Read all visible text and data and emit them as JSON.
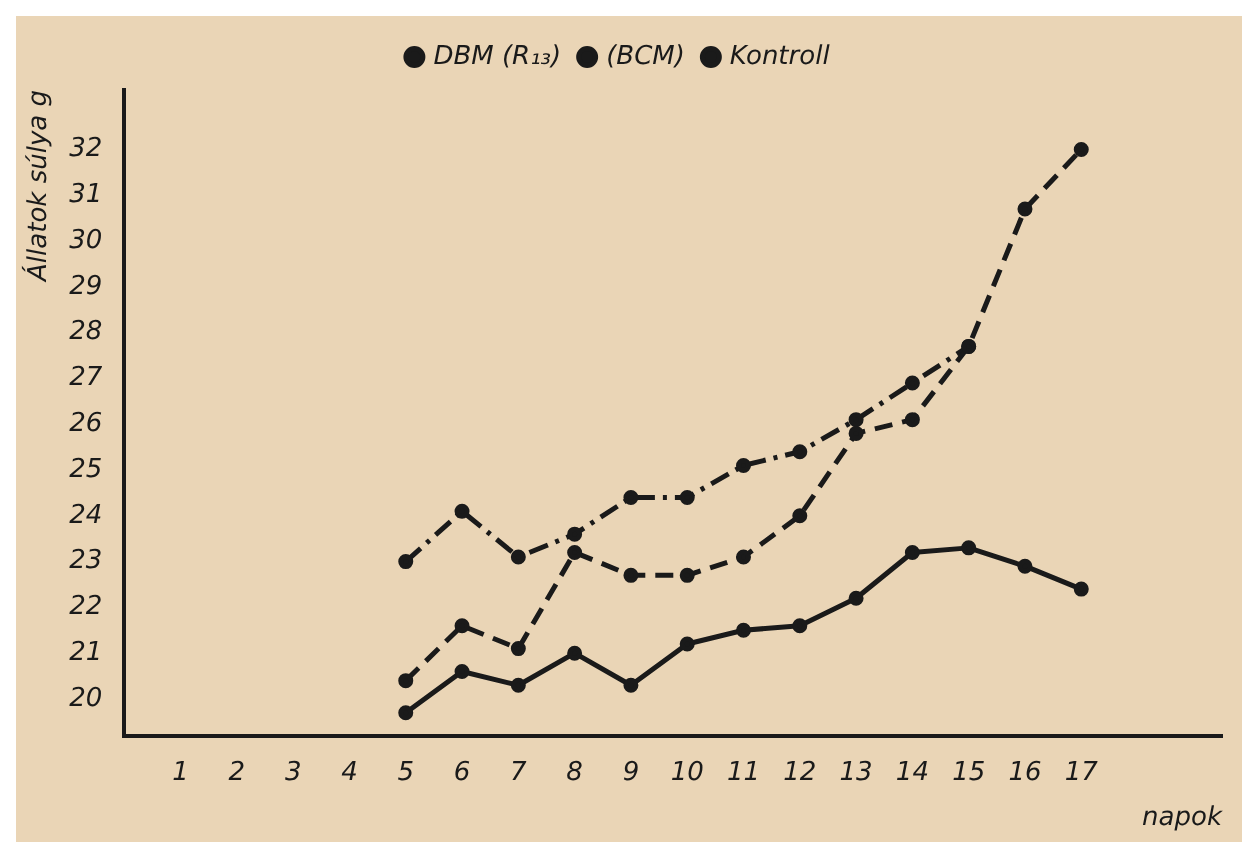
{
  "chart_data": {
    "type": "line",
    "xlabel": "napok",
    "ylabel": "Állatok súlya g",
    "x": [
      5,
      6,
      7,
      8,
      9,
      10,
      11,
      12,
      13,
      14,
      15,
      16,
      17
    ],
    "series": [
      {
        "name": "DBM (R₁₃)",
        "color": "#1a1a1a",
        "line_style": "solid",
        "values": [
          19.7,
          20.6,
          20.3,
          21.0,
          20.3,
          21.2,
          21.5,
          21.6,
          22.2,
          23.2,
          23.3,
          22.9,
          22.4
        ]
      },
      {
        "name": "(BCM)",
        "color": "#1a1a1a",
        "line_style": "dashed",
        "values": [
          20.4,
          21.6,
          21.1,
          23.2,
          22.7,
          22.7,
          23.1,
          24.0,
          25.8,
          26.1,
          27.7,
          30.7,
          32.0
        ]
      },
      {
        "name": "Kontroll",
        "color": "#1a1a1a",
        "line_style": "dashdot",
        "values": [
          23.0,
          24.1,
          23.1,
          23.6,
          24.4,
          24.4,
          25.1,
          25.4,
          26.1,
          26.9,
          27.7,
          null,
          null
        ]
      }
    ],
    "xlim": [
      0,
      19.5
    ],
    "xticks": [
      1,
      2,
      3,
      4,
      5,
      6,
      7,
      8,
      9,
      10,
      11,
      12,
      13,
      14,
      15,
      16,
      17
    ],
    "ylim": [
      19.2,
      33.3
    ],
    "yticks": [
      20,
      21,
      22,
      23,
      24,
      25,
      26,
      27,
      28,
      29,
      30,
      31,
      32
    ],
    "grid": false,
    "legend": "top",
    "marker": "circle"
  }
}
